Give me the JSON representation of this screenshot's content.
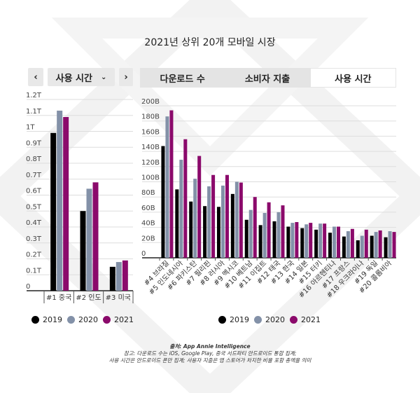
{
  "title": "2021년 상위 20개 모바일 시장",
  "controls": {
    "prev": "‹",
    "next": "›",
    "dropdown": "사용 시간",
    "dropdown_icon": "chevron-down-icon"
  },
  "tabs": [
    {
      "label": "다운로드 수",
      "active": false
    },
    {
      "label": "소비자 지출",
      "active": false
    },
    {
      "label": "사용 시간",
      "active": true
    }
  ],
  "colors": {
    "2019": "#000000",
    "2020": "#8391a8",
    "2021": "#8b0a6b"
  },
  "legend": [
    "2019",
    "2020",
    "2021"
  ],
  "footer": {
    "source": "출처: App Annie Intelligence",
    "note1": "참고: 다운로드 수는 iOS, Google Play, 중국 서드파티 안드로이드 통합 집계;",
    "note2": "사용 시간은 안드로이드 폰만 집계; 사용자 지출은 앱 스토어가 차지한 비율 포함 총액을 의미"
  },
  "chart_data": [
    {
      "type": "bar",
      "ylim": [
        0,
        1.2
      ],
      "yticks": [
        "0",
        "0.1T",
        "0.2T",
        "0.3T",
        "0.4T",
        "0.5T",
        "0.6T",
        "0.7T",
        "0.8T",
        "0.9T",
        "1T",
        "1.1T",
        "1.2T"
      ],
      "categories": [
        "#1 중국",
        "#2 인도",
        "#3 미국"
      ],
      "series": [
        {
          "name": "2019",
          "values": [
            0.99,
            0.5,
            0.15
          ]
        },
        {
          "name": "2020",
          "values": [
            1.13,
            0.64,
            0.18
          ]
        },
        {
          "name": "2021",
          "values": [
            1.09,
            0.68,
            0.19
          ]
        }
      ],
      "unit": "T",
      "grid": true
    },
    {
      "type": "bar",
      "ylim": [
        0,
        200
      ],
      "yticks": [
        "0",
        "20B",
        "40B",
        "60B",
        "80B",
        "100B",
        "120B",
        "140B",
        "160B",
        "180B",
        "200B"
      ],
      "categories": [
        "#4 브라질",
        "#5 인도네시아",
        "#6 파키스탄",
        "#7 필리핀",
        "#8 러시아",
        "#9 멕시코",
        "#10 베트남",
        "#11 이집트",
        "#12 태국",
        "#13 한국",
        "#14 일본",
        "#15 터키",
        "#16 아르헨티나",
        "#17 프랑스",
        "#18 우크라이나",
        "#19 독일",
        "#20 콜롬비아"
      ],
      "series": [
        {
          "name": "2019",
          "values": [
            147,
            90,
            74,
            68,
            67,
            84,
            50,
            43,
            48,
            41,
            39,
            37,
            33,
            28,
            23,
            29,
            27
          ]
        },
        {
          "name": "2020",
          "values": [
            186,
            129,
            104,
            94,
            95,
            100,
            63,
            59,
            60,
            46,
            44,
            45,
            41,
            35,
            29,
            34,
            35
          ]
        },
        {
          "name": "2021",
          "values": [
            194,
            156,
            134,
            109,
            109,
            99,
            80,
            73,
            69,
            47,
            46,
            45,
            41,
            38,
            37,
            36,
            34
          ]
        }
      ],
      "unit": "B",
      "grid": true
    }
  ]
}
